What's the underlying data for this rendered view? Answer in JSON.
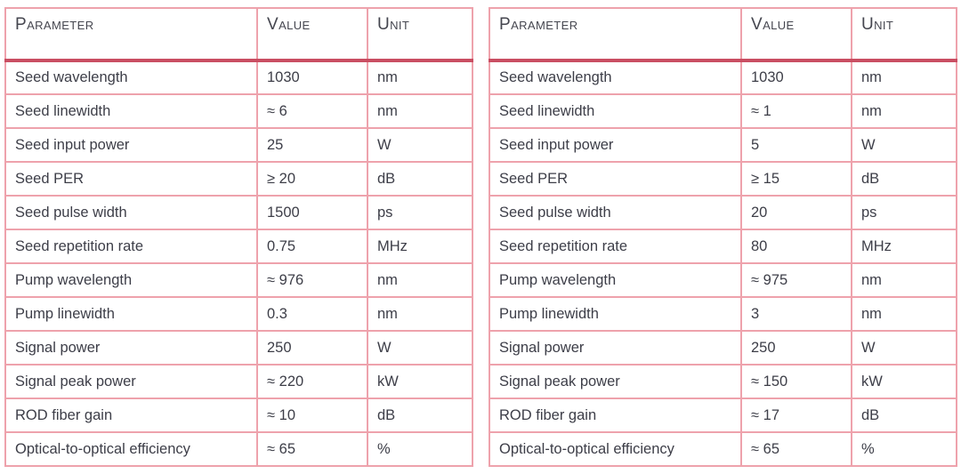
{
  "colors": {
    "grid_border_pink": "#eea2ac",
    "header_rule_red": "#c94e62",
    "text_dark": "#3d3e48",
    "background": "#ffffff"
  },
  "tables": [
    {
      "id": "left-spec-table",
      "headers": [
        "Parameter",
        "Value",
        "Unit"
      ],
      "rows": [
        {
          "parameter": "Seed wavelength",
          "value": "1030",
          "unit": "nm"
        },
        {
          "parameter": "Seed linewidth",
          "value": "≈ 6",
          "unit": "nm"
        },
        {
          "parameter": "Seed input power",
          "value": "25",
          "unit": "W"
        },
        {
          "parameter": "Seed PER",
          "value": "≥ 20",
          "unit": "dB"
        },
        {
          "parameter": "Seed pulse width",
          "value": "1500",
          "unit": "ps"
        },
        {
          "parameter": "Seed repetition rate",
          "value": "0.75",
          "unit": "MHz"
        },
        {
          "parameter": "Pump wavelength",
          "value": "≈ 976",
          "unit": "nm"
        },
        {
          "parameter": "Pump linewidth",
          "value": "0.3",
          "unit": "nm"
        },
        {
          "parameter": "Signal power",
          "value": "250",
          "unit": "W"
        },
        {
          "parameter": "Signal peak power",
          "value": "≈ 220",
          "unit": "kW"
        },
        {
          "parameter": "ROD fiber gain",
          "value": "≈ 10",
          "unit": "dB"
        },
        {
          "parameter": "Optical-to-optical efficiency",
          "value": "≈ 65",
          "unit": "%"
        }
      ]
    },
    {
      "id": "right-spec-table",
      "headers": [
        "Parameter",
        "Value",
        "Unit"
      ],
      "rows": [
        {
          "parameter": "Seed wavelength",
          "value": "1030",
          "unit": "nm"
        },
        {
          "parameter": "Seed linewidth",
          "value": "≈ 1",
          "unit": "nm"
        },
        {
          "parameter": "Seed input power",
          "value": "5",
          "unit": "W"
        },
        {
          "parameter": "Seed PER",
          "value": "≥ 15",
          "unit": "dB"
        },
        {
          "parameter": "Seed pulse width",
          "value": "20",
          "unit": "ps"
        },
        {
          "parameter": "Seed repetition rate",
          "value": "80",
          "unit": "MHz"
        },
        {
          "parameter": "Pump wavelength",
          "value": "≈ 975",
          "unit": "nm"
        },
        {
          "parameter": "Pump linewidth",
          "value": "3",
          "unit": "nm"
        },
        {
          "parameter": "Signal power",
          "value": "250",
          "unit": "W"
        },
        {
          "parameter": "Signal peak power",
          "value": "≈ 150",
          "unit": "kW"
        },
        {
          "parameter": "ROD fiber gain",
          "value": "≈ 17",
          "unit": "dB"
        },
        {
          "parameter": "Optical-to-optical efficiency",
          "value": "≈ 65",
          "unit": "%"
        }
      ]
    }
  ]
}
